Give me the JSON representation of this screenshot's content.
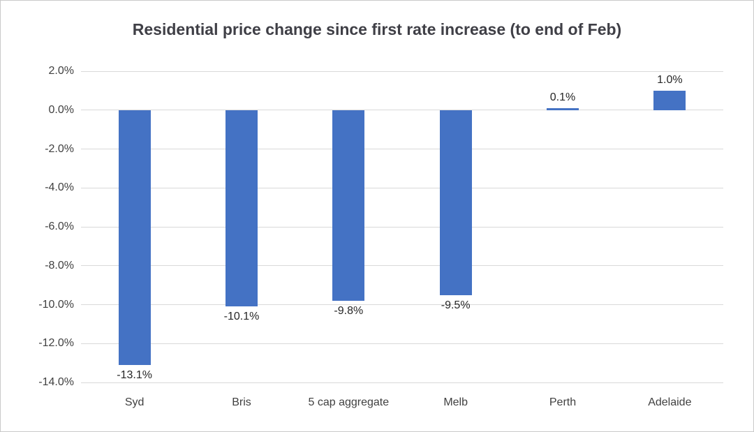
{
  "chart_data": {
    "type": "bar",
    "title": "Residential price change since first rate increase (to end of Feb)",
    "categories": [
      "Syd",
      "Bris",
      "5 cap aggregate",
      "Melb",
      "Perth",
      "Adelaide"
    ],
    "values": [
      -13.1,
      -10.1,
      -9.8,
      -9.5,
      0.1,
      1.0
    ],
    "data_labels": [
      "-13.1%",
      "-10.1%",
      "-9.8%",
      "-9.5%",
      "0.1%",
      "1.0%"
    ],
    "xlabel": "",
    "ylabel": "",
    "ylim": [
      -14,
      2
    ],
    "ytick_step": 2,
    "yticks": [
      2,
      0,
      -2,
      -4,
      -6,
      -8,
      -10,
      -12,
      -14
    ],
    "ytick_labels": [
      "2.0%",
      "0.0%",
      "-2.0%",
      "-4.0%",
      "-6.0%",
      "-8.0%",
      "-10.0%",
      "-12.0%",
      "-14.0%"
    ],
    "grid": true,
    "legend_position": "none",
    "colors": {
      "bar": "#4472C4",
      "title_text": "#3f3f46",
      "axis_text": "#404040",
      "data_label_text": "#262626",
      "gridline": "#d9d9d9",
      "frame_border": "#c9c9c9",
      "background": "#ffffff"
    }
  }
}
